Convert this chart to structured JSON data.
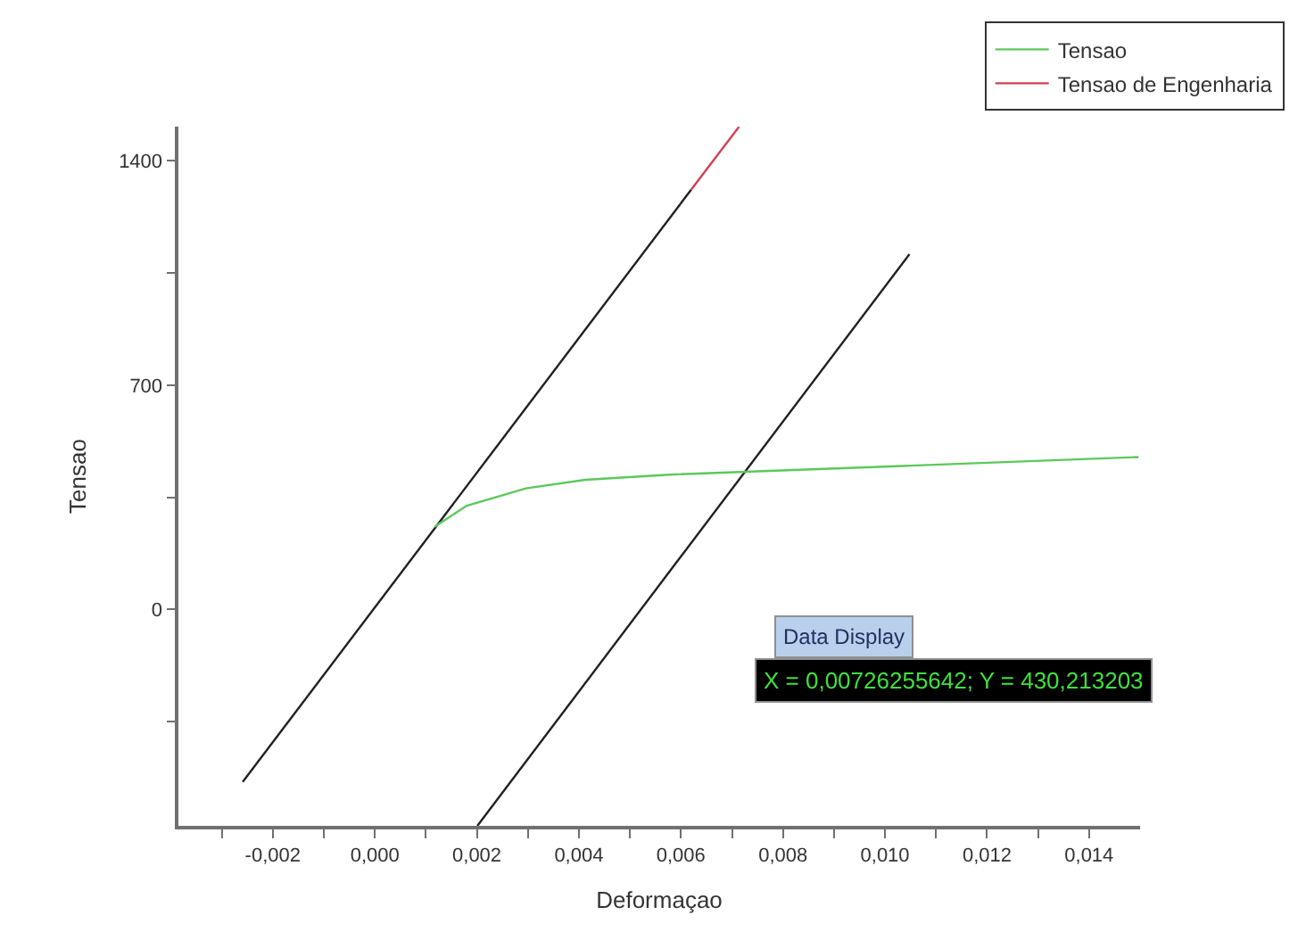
{
  "chart_data": {
    "type": "line",
    "xlabel": "Deformaçao",
    "ylabel": "Tensao",
    "xlim": [
      -0.00385,
      0.015
    ],
    "ylim": [
      -675,
      1507
    ],
    "xticks": [
      {
        "value": -0.003,
        "label": null
      },
      {
        "value": -0.002,
        "label": "-0,002"
      },
      {
        "value": -0.001,
        "label": null
      },
      {
        "value": 0.0,
        "label": "0,000"
      },
      {
        "value": 0.001,
        "label": null
      },
      {
        "value": 0.002,
        "label": "0,002"
      },
      {
        "value": 0.003,
        "label": null
      },
      {
        "value": 0.004,
        "label": "0,004"
      },
      {
        "value": 0.005,
        "label": null
      },
      {
        "value": 0.006,
        "label": "0,006"
      },
      {
        "value": 0.007,
        "label": null
      },
      {
        "value": 0.008,
        "label": "0,008"
      },
      {
        "value": 0.009,
        "label": null
      },
      {
        "value": 0.01,
        "label": "0,010"
      },
      {
        "value": 0.011,
        "label": null
      },
      {
        "value": 0.012,
        "label": "0,012"
      },
      {
        "value": 0.013,
        "label": null
      },
      {
        "value": 0.014,
        "label": "0,014"
      }
    ],
    "yticks": [
      {
        "value": -350,
        "label": null
      },
      0,
      {
        "value": 350,
        "label": null
      },
      700,
      {
        "value": 1050,
        "label": null
      },
      1400
    ],
    "legend": "top right",
    "marker": "none",
    "line_style": "solid",
    "series": [
      {
        "color": "#202020",
        "x": [
          -0.00259,
          0.0062
        ],
        "values": [
          -538,
          1310
        ]
      },
      {
        "color": "#202020",
        "x": [
          0.00201,
          0.01048
        ],
        "values": [
          -675,
          1109
        ]
      },
      {
        "name": "Tensao",
        "color": "#5cc85c",
        "x": [
          0.00117,
          0.0018,
          0.00296,
          0.00412,
          0.00577,
          0.00726,
          0.0105,
          0.01497
        ],
        "values": [
          258,
          324,
          378,
          405,
          421,
          430,
          449,
          476
        ]
      },
      {
        "name": "Tensao de Engenharia",
        "color": "#d04050",
        "x": [
          0.0062,
          0.00714
        ],
        "values": [
          1310,
          1507
        ]
      }
    ],
    "annotations": [
      "Data Display",
      "X = 0,00726255642; Y = 430,213203"
    ]
  }
}
